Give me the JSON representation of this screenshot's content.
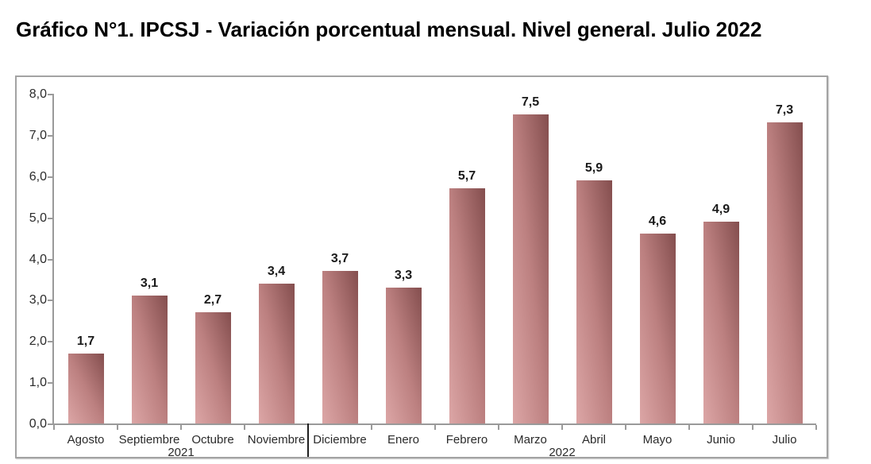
{
  "page_title": "Gráfico N°1. IPCSJ - Variación porcentual mensual. Nivel general. Julio 2022",
  "chart_data": {
    "type": "bar",
    "title": "Gráfico N°1. IPCSJ - Variación porcentual mensual. Nivel general. Julio 2022",
    "categories": [
      "Agosto",
      "Septiembre",
      "Octubre",
      "Noviembre",
      "Diciembre",
      "Enero",
      "Febrero",
      "Marzo",
      "Abril",
      "Mayo",
      "Junio",
      "Julio"
    ],
    "values": [
      1.7,
      3.1,
      2.7,
      3.4,
      3.7,
      3.3,
      5.7,
      7.5,
      5.9,
      4.6,
      4.9,
      7.3
    ],
    "value_labels": [
      "1,7",
      "3,1",
      "2,7",
      "3,4",
      "3,7",
      "3,3",
      "5,7",
      "7,5",
      "5,9",
      "4,6",
      "4,9",
      "7,3"
    ],
    "year_groups": [
      {
        "label": "2021",
        "start_index": 0,
        "end_index": 3
      },
      {
        "label": "2022",
        "start_index": 4,
        "end_index": 11
      }
    ],
    "y_axis": {
      "min": 0,
      "max": 8,
      "step": 1,
      "tick_labels": [
        "0,0",
        "1,0",
        "2,0",
        "3,0",
        "4,0",
        "5,0",
        "6,0",
        "7,0",
        "8,0"
      ]
    },
    "xlabel": "",
    "ylabel": "",
    "grid": false,
    "legend": "none",
    "colors": {
      "bar_gradient_light": "#dca6a6",
      "bar_gradient_mid": "#bc8080",
      "bar_gradient_dark": "#844e4e",
      "axis": "#9a9a9a",
      "frame_border": "#a3a3a3",
      "tick_label": "#2b2b2b",
      "data_label": "#1a1a1a",
      "year_divider": "#1f1f1f",
      "background": "#ffffff"
    }
  }
}
